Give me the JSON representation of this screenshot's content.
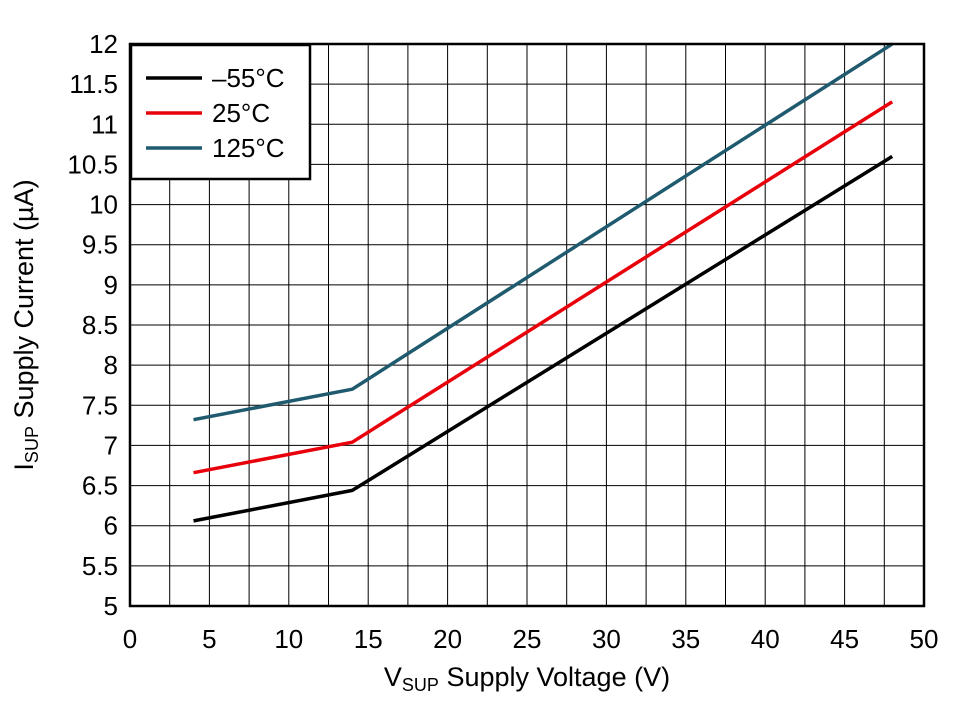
{
  "chart_data": {
    "type": "line",
    "title": "",
    "xlabel": {
      "prefix": "V",
      "subscript": "SUP",
      "text": " Supply Voltage (V)"
    },
    "ylabel": {
      "prefix": "I",
      "subscript": "SUP",
      "text": " Supply Current (µA)"
    },
    "xlim": [
      0,
      50
    ],
    "ylim": [
      5,
      12
    ],
    "xticks": [
      0,
      5,
      10,
      15,
      20,
      25,
      30,
      35,
      40,
      45,
      50
    ],
    "yticks": [
      5,
      5.5,
      6,
      6.5,
      7,
      7.5,
      8,
      8.5,
      9,
      9.5,
      10,
      10.5,
      11,
      11.5,
      12
    ],
    "xtick_labels": [
      "0",
      "5",
      "10",
      "15",
      "20",
      "25",
      "30",
      "35",
      "40",
      "45",
      "50"
    ],
    "ytick_labels": [
      "5",
      "5.5",
      "6",
      "6.5",
      "7",
      "7.5",
      "8",
      "8.5",
      "9",
      "9.5",
      "10",
      "10.5",
      "11",
      "11.5",
      "12"
    ],
    "grid": true,
    "legend_position": "top-left",
    "series": [
      {
        "name": "–55°C",
        "color": "#000000",
        "x": [
          4,
          14,
          48
        ],
        "y": [
          6.06,
          6.44,
          10.6
        ]
      },
      {
        "name": "25°C",
        "color": "#e8000b",
        "x": [
          4,
          14,
          48
        ],
        "y": [
          6.66,
          7.04,
          11.28
        ]
      },
      {
        "name": "125°C",
        "color": "#1f5a6e",
        "x": [
          4,
          14,
          48
        ],
        "y": [
          7.32,
          7.7,
          12.0
        ]
      }
    ]
  }
}
